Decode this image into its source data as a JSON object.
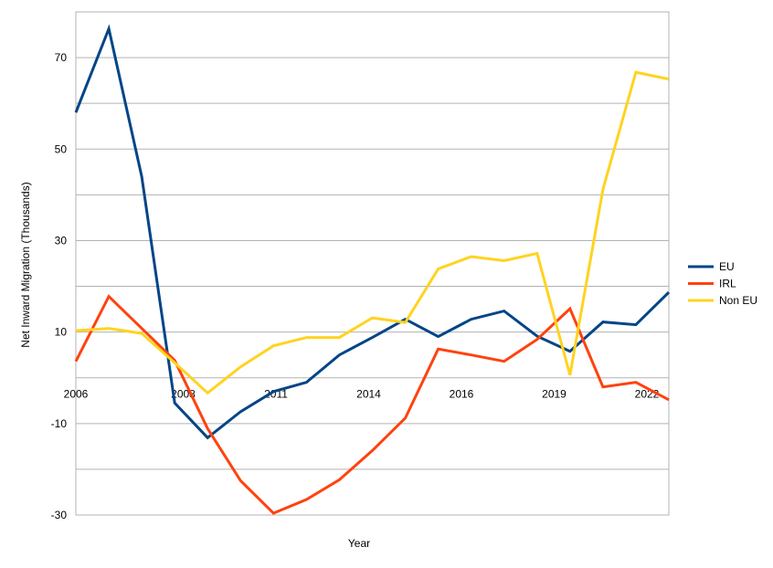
{
  "chart_data": {
    "type": "line",
    "title": "",
    "xlabel": "Year",
    "ylabel": "Net Inward Migration (Thousands)",
    "x": [
      2006,
      2007,
      2008,
      2009,
      2010,
      2011,
      2012,
      2013,
      2014,
      2015,
      2016,
      2017,
      2018,
      2019,
      2020,
      2021,
      2022,
      2023,
      2024
    ],
    "x_tick_labels": [
      "2006",
      "2008",
      "2011",
      "2014",
      "2016",
      "2019",
      "2022"
    ],
    "y_ticks": [
      -30,
      -10,
      10,
      30,
      50,
      70
    ],
    "ylim": [
      -30,
      80
    ],
    "grid": true,
    "legend_position": "right",
    "series": [
      {
        "name": "EU",
        "color": "#004586",
        "values": [
          58,
          76.3,
          44,
          -5.5,
          -13.1,
          -7.4,
          -3,
          -1,
          5,
          8.8,
          12.8,
          9,
          12.8,
          14.6,
          9.1,
          5.8,
          12.2,
          11.6,
          18.7
        ]
      },
      {
        "name": "IRL",
        "color": "#ff420e",
        "values": [
          3.6,
          17.8,
          10.8,
          3.8,
          -11.1,
          -22.5,
          -29.6,
          -26.6,
          -22.3,
          -15.9,
          -8.8,
          6.3,
          5,
          3.6,
          8.4,
          15.1,
          -2,
          -1,
          -4.8
        ]
      },
      {
        "name": "Non EU",
        "color": "#ffd320",
        "values": [
          10.3,
          10.8,
          9.7,
          3.3,
          -3.3,
          2.4,
          7,
          8.8,
          8.8,
          13.1,
          12.1,
          23.8,
          26.5,
          25.6,
          27.2,
          0.6,
          41.2,
          66.8,
          65.3
        ]
      }
    ]
  }
}
